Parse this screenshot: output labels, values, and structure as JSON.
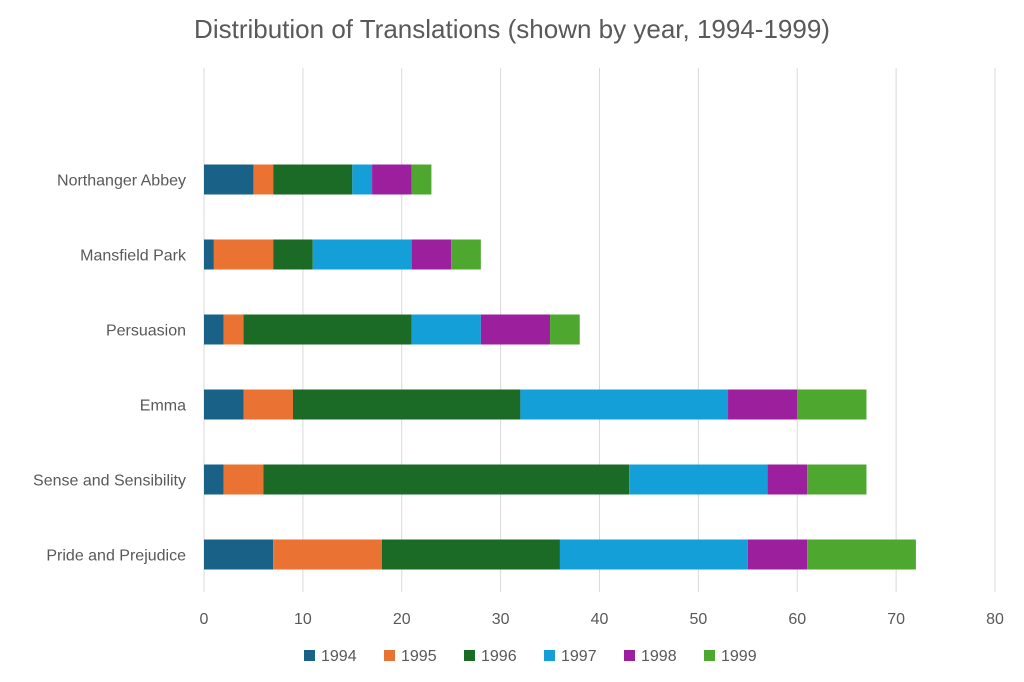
{
  "chart_data": {
    "type": "bar",
    "orientation": "horizontal",
    "stacked": true,
    "title": "Distribution of Translations (shown by year, 1994-1999)",
    "xlabel": "",
    "ylabel": "",
    "xlim": [
      0,
      80
    ],
    "x_ticks": [
      0,
      10,
      20,
      30,
      40,
      50,
      60,
      70,
      80
    ],
    "grid": "vertical",
    "legend_position": "bottom",
    "categories": [
      "Pride and Prejudice",
      "Sense and Sensibility",
      "Emma",
      "Persuasion",
      "Mansfield Park",
      "Northanger Abbey"
    ],
    "series": [
      {
        "name": "1994",
        "color": "#1a6188",
        "values": [
          7,
          2,
          4,
          2,
          1,
          5
        ]
      },
      {
        "name": "1995",
        "color": "#ea7333",
        "values": [
          11,
          4,
          5,
          2,
          6,
          2
        ]
      },
      {
        "name": "1996",
        "color": "#1b6b27",
        "values": [
          18,
          37,
          23,
          17,
          4,
          8
        ]
      },
      {
        "name": "1997",
        "color": "#149fd9",
        "values": [
          19,
          14,
          21,
          7,
          10,
          2
        ]
      },
      {
        "name": "1998",
        "color": "#9c1f9e",
        "values": [
          6,
          4,
          7,
          7,
          4,
          4
        ]
      },
      {
        "name": "1999",
        "color": "#4ea72e",
        "values": [
          11,
          6,
          7,
          3,
          3,
          2
        ]
      }
    ]
  }
}
